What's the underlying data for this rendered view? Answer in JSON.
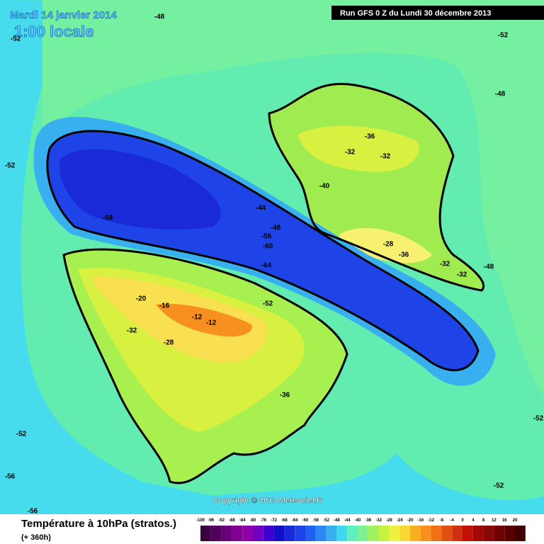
{
  "header": {
    "date": "Mardi 14 janvier 2014",
    "time": "1:00 locale",
    "run": "Run GFS 0 Z du Lundi 30 décembre 2013"
  },
  "copyright": "Copyright © 2013 Meteociel.fr",
  "footer": {
    "title": "Température à 10hPa (stratos.)",
    "range": "(+ 360h)"
  },
  "contour_labels": [
    -48,
    -52,
    -52,
    -48,
    -52,
    -68,
    -44,
    -48,
    -56,
    -60,
    -64,
    -52,
    -40,
    -36,
    -32,
    -32,
    -28,
    -36,
    -32,
    -32,
    -48,
    -20,
    -16,
    -12,
    -12,
    -28,
    -32,
    -36,
    -52,
    -52,
    -56,
    -52,
    -56
  ],
  "scale": {
    "values": [
      -100,
      -96,
      -92,
      -88,
      -84,
      -80,
      -76,
      -72,
      -68,
      -64,
      -60,
      -56,
      -52,
      -48,
      -44,
      -40,
      -36,
      -32,
      -28,
      -24,
      -20,
      -16,
      -12,
      -8,
      -4,
      0,
      4,
      8,
      12,
      16,
      20
    ],
    "colors": [
      "#3a0040",
      "#50005a",
      "#680078",
      "#800090",
      "#9000a8",
      "#7000c0",
      "#4000d0",
      "#1010c8",
      "#1a2ad8",
      "#1e44e8",
      "#2060f0",
      "#2c88f4",
      "#38b0f0",
      "#40d8f0",
      "#60f0c0",
      "#80f090",
      "#a0f060",
      "#c8f040",
      "#f0f040",
      "#f8d830",
      "#f8b020",
      "#f89020",
      "#f07018",
      "#e05010",
      "#d03010",
      "#c01008",
      "#a00808",
      "#880808",
      "#700000",
      "#580000",
      "#400000"
    ]
  }
}
